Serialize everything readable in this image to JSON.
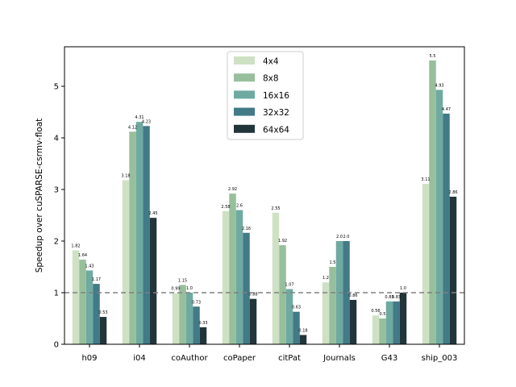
{
  "chart_data": {
    "type": "bar",
    "title": "",
    "xlabel": "",
    "ylabel": "Speedup over cuSPARSE-csrmv-float",
    "ylim": [
      0,
      5.8
    ],
    "yticks": [
      0,
      1,
      2,
      3,
      4,
      5
    ],
    "grid": false,
    "legend_position": "top-center",
    "reference_line": {
      "y": 1.0,
      "style": "dashed",
      "color": "#808080"
    },
    "categories": [
      "h09",
      "i04",
      "coAuthor",
      "coPaper",
      "citPat",
      "Journals",
      "G43",
      "ship_003"
    ],
    "series": [
      {
        "name": "4x4",
        "color": "#cfe1c4",
        "values": [
          1.82,
          3.18,
          0.99,
          2.58,
          2.55,
          1.2,
          0.56,
          3.11
        ],
        "labels": [
          "1.82",
          "3.18",
          "0.99",
          "2.58",
          "2.55",
          "1.2",
          "0.56",
          "3.11"
        ]
      },
      {
        "name": "8x8",
        "color": "#98bf9c",
        "values": [
          1.64,
          4.12,
          1.15,
          2.92,
          1.92,
          1.5,
          0.5,
          5.5
        ],
        "labels": [
          "1.64",
          "4.12",
          "1.15",
          "2.92",
          "1.92",
          "1.5",
          "0.5",
          "5.5"
        ]
      },
      {
        "name": "16x16",
        "color": "#6faaa1",
        "values": [
          1.43,
          4.31,
          1.0,
          2.6,
          1.07,
          2.0,
          0.83,
          4.93
        ],
        "labels": [
          "1.43",
          "4.31",
          "1.0",
          "2.6",
          "1.07",
          "2.0",
          "0.83",
          "4.93"
        ]
      },
      {
        "name": "32x32",
        "color": "#427a87",
        "values": [
          1.17,
          4.23,
          0.73,
          2.16,
          0.63,
          2.0,
          0.83,
          4.47
        ],
        "labels": [
          "1.17",
          "4.23",
          "0.73",
          "2.16",
          "0.63",
          "2.0",
          "0.83",
          "4.47"
        ]
      },
      {
        "name": "64x64",
        "color": "#22353b",
        "values": [
          0.53,
          2.45,
          0.33,
          0.88,
          0.18,
          0.86,
          1.0,
          2.86
        ],
        "labels": [
          "0.53",
          "2.45",
          "0.33",
          "0.88",
          "0.18",
          "0.86",
          "1.0",
          "2.86"
        ]
      }
    ]
  }
}
